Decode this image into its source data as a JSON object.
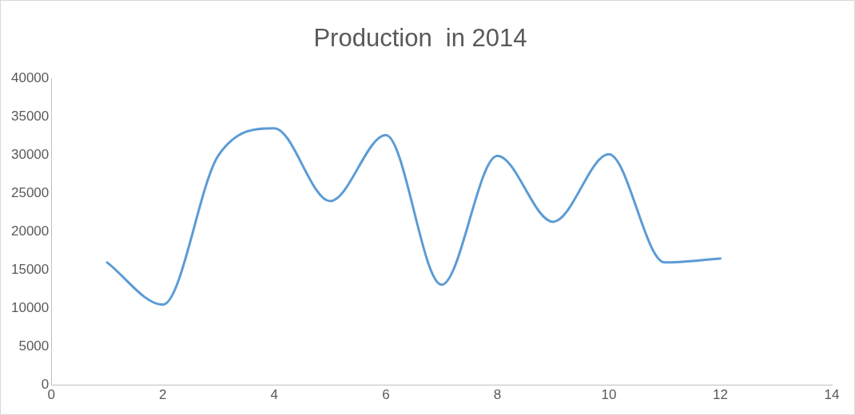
{
  "chart_data": {
    "type": "line",
    "title": "Production  in 2014",
    "x": [
      1,
      2,
      3,
      4,
      5,
      6,
      7,
      8,
      9,
      10,
      11,
      12
    ],
    "series": [
      {
        "color": "#5b9bd5",
        "values": [
          16000,
          10500,
          30000,
          33500,
          24000,
          32600,
          13100,
          29900,
          21300,
          30100,
          16000,
          16500
        ]
      }
    ],
    "xlim": [
      0,
      14
    ],
    "xticks": [
      0,
      2,
      4,
      6,
      8,
      10,
      12,
      14
    ],
    "ylim": [
      0,
      40000
    ],
    "yticks": [
      0,
      5000,
      10000,
      15000,
      20000,
      25000,
      30000,
      35000,
      40000
    ],
    "grid": false,
    "legend": false,
    "marker": "none",
    "line_style": "solid"
  }
}
